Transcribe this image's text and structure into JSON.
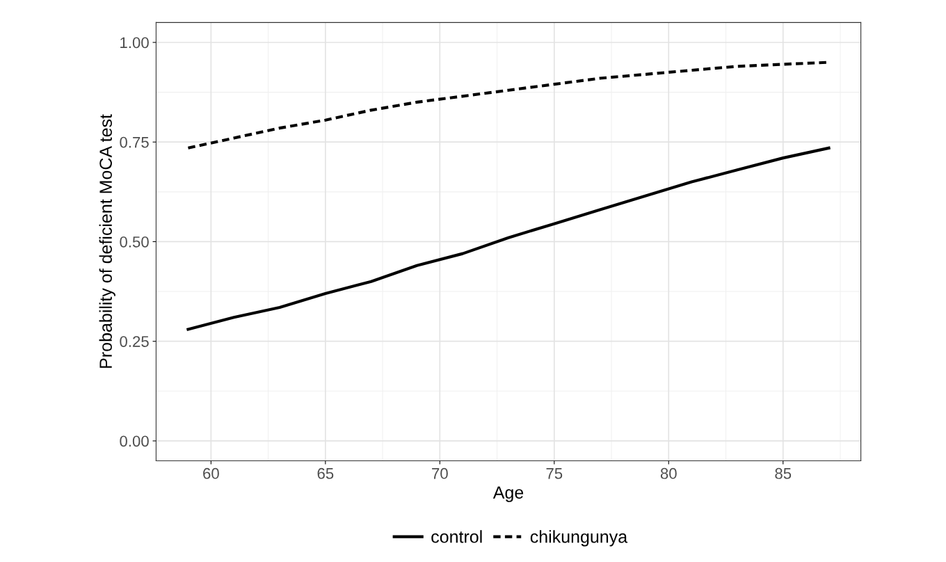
{
  "chart_data": {
    "type": "line",
    "xlabel": "Age",
    "ylabel": "Probability of deficient MoCA test",
    "xlim": [
      57.6,
      88.4
    ],
    "ylim": [
      -0.05,
      1.05
    ],
    "xticks": [
      60,
      65,
      70,
      75,
      80,
      85
    ],
    "yticks": [
      {
        "value": 0,
        "label": "0.00"
      },
      {
        "value": 0.25,
        "label": "0.25"
      },
      {
        "value": 0.5,
        "label": "0.50"
      },
      {
        "value": 0.75,
        "label": "0.75"
      },
      {
        "value": 1,
        "label": "1.00"
      }
    ],
    "grid": true,
    "legend": "bottom",
    "marker": "none",
    "series": [
      {
        "name": "control",
        "color": "#000000",
        "line_style": "solid",
        "x": [
          59,
          61,
          63,
          65,
          67,
          69,
          71,
          73,
          75,
          77,
          79,
          81,
          83,
          85,
          87
        ],
        "values": [
          0.28,
          0.31,
          0.335,
          0.37,
          0.4,
          0.44,
          0.47,
          0.51,
          0.545,
          0.58,
          0.615,
          0.65,
          0.68,
          0.71,
          0.735
        ]
      },
      {
        "name": "chikungunya",
        "color": "#000000",
        "line_style": "dashed",
        "x": [
          59,
          61,
          63,
          65,
          67,
          69,
          71,
          73,
          75,
          77,
          79,
          81,
          83,
          85,
          87
        ],
        "values": [
          0.735,
          0.76,
          0.785,
          0.805,
          0.83,
          0.85,
          0.865,
          0.88,
          0.895,
          0.91,
          0.92,
          0.93,
          0.94,
          0.945,
          0.95
        ]
      }
    ]
  }
}
